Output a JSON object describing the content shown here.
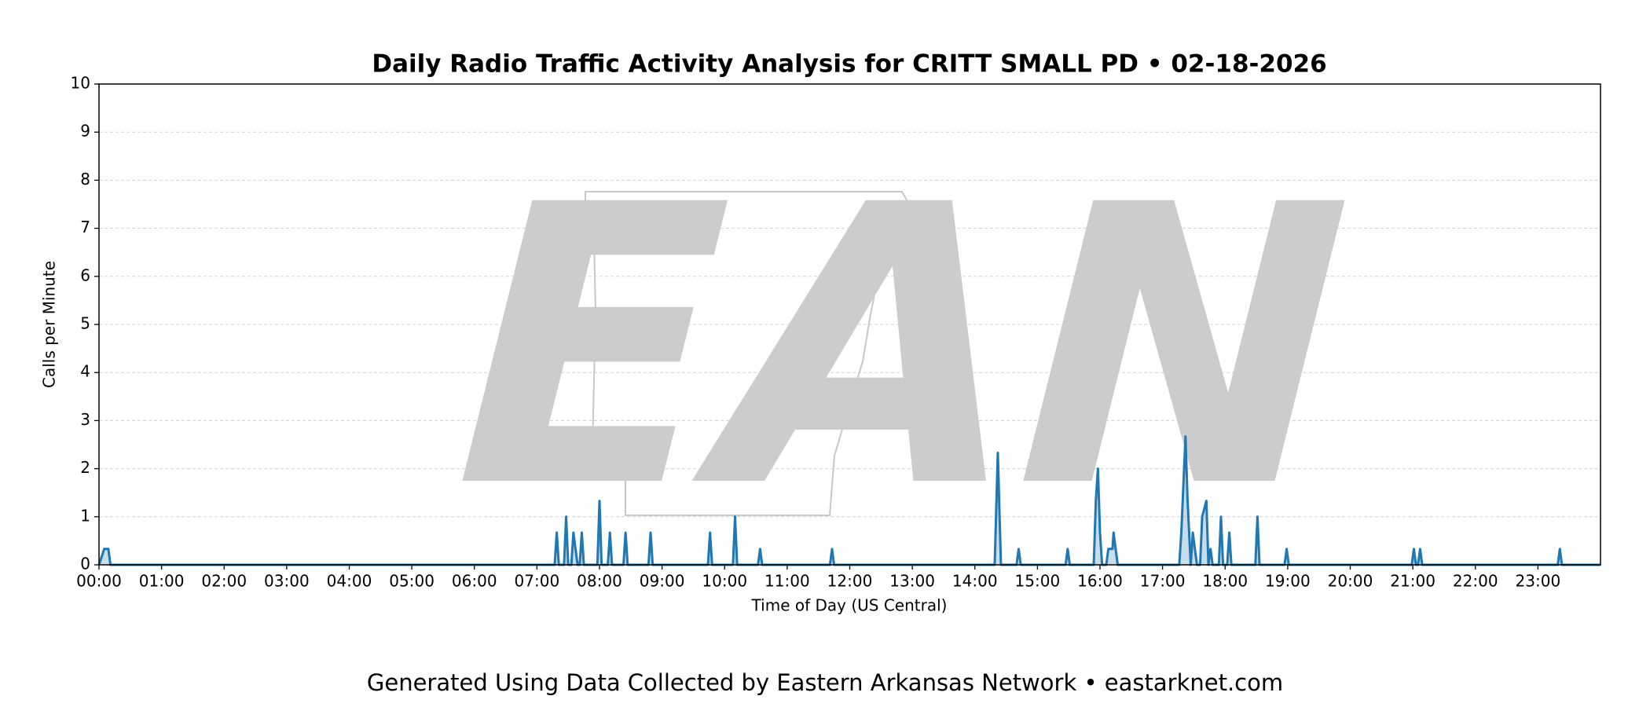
{
  "chart_data": {
    "type": "line",
    "title": "Daily Radio Traffic Activity Analysis for CRITT SMALL PD • 02-18-2026",
    "x_label": "Time of Day (US Central)",
    "y_label": "Calls per Minute",
    "watermark": "EAN",
    "footer": "Generated Using Data Collected by Eastern Arkansas Network • eastarknet.com",
    "xlim": [
      0,
      1440
    ],
    "ylim": [
      0,
      10
    ],
    "grid": true,
    "xticks": [
      {
        "value": 0,
        "label": "00:00"
      },
      {
        "value": 60,
        "label": "01:00"
      },
      {
        "value": 120,
        "label": "02:00"
      },
      {
        "value": 180,
        "label": "03:00"
      },
      {
        "value": 240,
        "label": "04:00"
      },
      {
        "value": 300,
        "label": "05:00"
      },
      {
        "value": 360,
        "label": "06:00"
      },
      {
        "value": 420,
        "label": "07:00"
      },
      {
        "value": 480,
        "label": "08:00"
      },
      {
        "value": 540,
        "label": "09:00"
      },
      {
        "value": 600,
        "label": "10:00"
      },
      {
        "value": 660,
        "label": "11:00"
      },
      {
        "value": 720,
        "label": "12:00"
      },
      {
        "value": 780,
        "label": "13:00"
      },
      {
        "value": 840,
        "label": "14:00"
      },
      {
        "value": 900,
        "label": "15:00"
      },
      {
        "value": 960,
        "label": "16:00"
      },
      {
        "value": 1020,
        "label": "17:00"
      },
      {
        "value": 1080,
        "label": "18:00"
      },
      {
        "value": 1140,
        "label": "19:00"
      },
      {
        "value": 1200,
        "label": "20:00"
      },
      {
        "value": 1260,
        "label": "21:00"
      },
      {
        "value": 1320,
        "label": "22:00"
      },
      {
        "value": 1380,
        "label": "23:00"
      }
    ],
    "yticks": [
      0,
      1,
      2,
      3,
      4,
      5,
      6,
      7,
      8,
      9,
      10
    ],
    "series": [
      {
        "name": "Calls per Minute",
        "color": "#1f77b4",
        "x": [
          0,
          5,
          9,
          11,
          437,
          439,
          441,
          446,
          448,
          450,
          453,
          455,
          457,
          459,
          461,
          463,
          465,
          478,
          480,
          482,
          488,
          490,
          492,
          503,
          505,
          507,
          527,
          529,
          531,
          584,
          586,
          588,
          608,
          610,
          612,
          632,
          634,
          636,
          701,
          703,
          705,
          859,
          862,
          865,
          880,
          882,
          884,
          927,
          929,
          931,
          954,
          956,
          958,
          960,
          962,
          966,
          968,
          972,
          973,
          975,
          977,
          1036,
          1038,
          1042,
          1044,
          1047,
          1049,
          1051,
          1053,
          1056,
          1058,
          1062,
          1064,
          1066,
          1068,
          1074,
          1076,
          1078,
          1082,
          1084,
          1086,
          1109,
          1111,
          1113,
          1137,
          1139,
          1141,
          1259,
          1261,
          1263,
          1265,
          1267,
          1269,
          1399,
          1401,
          1403,
          1440
        ],
        "values": [
          0,
          0.33,
          0.33,
          0,
          0,
          0.67,
          0,
          0,
          1.0,
          0,
          0,
          0.67,
          0.33,
          0,
          0,
          0.67,
          0,
          0,
          1.33,
          0,
          0,
          0.67,
          0,
          0,
          0.67,
          0,
          0,
          0.67,
          0,
          0,
          0.67,
          0,
          0,
          1.0,
          0,
          0,
          0.33,
          0,
          0,
          0.33,
          0,
          0,
          2.33,
          0,
          0,
          0.33,
          0,
          0,
          0.33,
          0,
          0,
          1.33,
          2.0,
          0.67,
          0,
          0,
          0.33,
          0.33,
          0.67,
          0.33,
          0,
          0,
          0.67,
          2.67,
          1.33,
          0,
          0.67,
          0.33,
          0,
          0,
          1.0,
          1.33,
          0,
          0.33,
          0,
          0,
          1.0,
          0,
          0,
          0.67,
          0,
          0,
          1.0,
          0,
          0,
          0.33,
          0,
          0,
          0.33,
          0,
          0,
          0.33,
          0,
          0,
          0.33,
          0,
          0
        ]
      }
    ]
  }
}
